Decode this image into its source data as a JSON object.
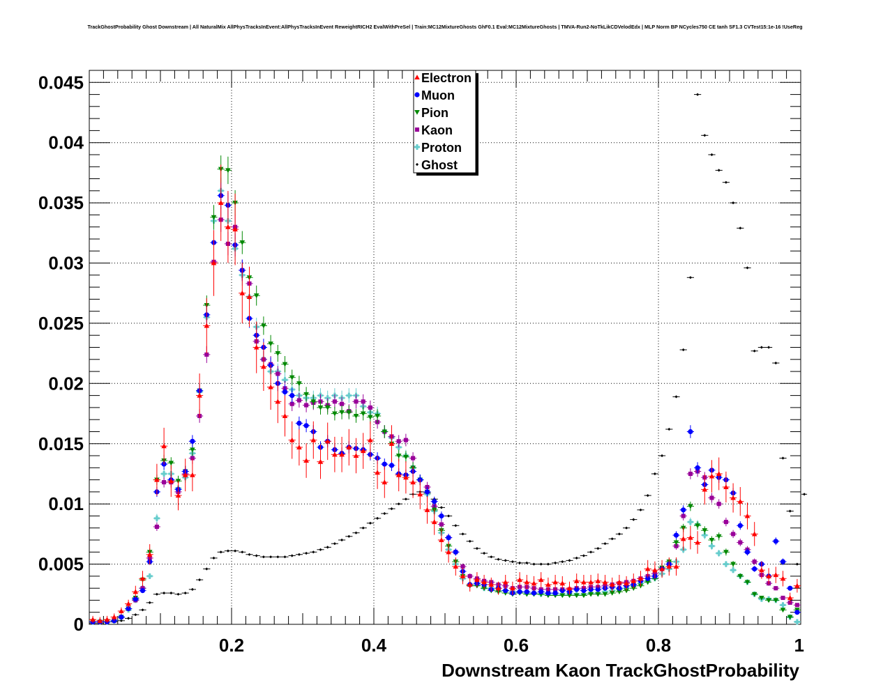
{
  "page": {
    "title": "TrackGhostProbability Ghost Downstream | All NaturalMix AllPhysTracksInEvent:AllPhysTracksInEvent ReweightRICH2 EvalWithPreSel | Train:MC12MixtureGhosts GhF0.1 Eval:MC12MixtureGhosts | TMVA-Run2-NoTkLikCDVelodEdx | MLP Norm BP NCycles750 CE tanh SF1.3 CVTest15:1e-16 !UseReg"
  },
  "chart_data": {
    "type": "scatter",
    "title": "TrackGhostProbability Ghost Downstream | All NaturalMix AllPhysTracksInEvent:AllPhysTracksInEvent ReweightRICH2 EvalWithPreSel | Train:MC12MixtureGhosts GhF0.1 Eval:MC12MixtureGhosts | TMVA-Run2-NoTkLikCDVelodEdx | MLP Norm BP NCycles750 CE tanh SF1.3 CVTest15:1e-16 !UseReg",
    "xlabel": "Downstream Kaon TrackGhostProbability",
    "ylabel": "",
    "xlim": [
      0,
      1
    ],
    "ylim": [
      0,
      0.046
    ],
    "grid": true,
    "legend_position": "top-center",
    "x_ticks": [
      0.2,
      0.4,
      0.6,
      0.8,
      1
    ],
    "x_tick_labels": [
      "0.2",
      "0.4",
      "0.6",
      "0.8",
      "1"
    ],
    "y_ticks": [
      0,
      0.005,
      0.01,
      0.015,
      0.02,
      0.025,
      0.03,
      0.035,
      0.04,
      0.045
    ],
    "y_tick_labels": [
      "0",
      "0.005",
      "0.01",
      "0.015",
      "0.02",
      "0.025",
      "0.03",
      "0.035",
      "0.04",
      "0.045"
    ],
    "x": [
      0.005,
      0.015,
      0.025,
      0.035,
      0.045,
      0.055,
      0.065,
      0.075,
      0.085,
      0.095,
      0.105,
      0.115,
      0.125,
      0.135,
      0.145,
      0.155,
      0.165,
      0.175,
      0.185,
      0.195,
      0.205,
      0.215,
      0.225,
      0.235,
      0.245,
      0.255,
      0.265,
      0.275,
      0.285,
      0.295,
      0.305,
      0.315,
      0.325,
      0.335,
      0.345,
      0.355,
      0.365,
      0.375,
      0.385,
      0.395,
      0.405,
      0.415,
      0.425,
      0.435,
      0.445,
      0.455,
      0.465,
      0.475,
      0.485,
      0.495,
      0.505,
      0.515,
      0.525,
      0.535,
      0.545,
      0.555,
      0.565,
      0.575,
      0.585,
      0.595,
      0.605,
      0.615,
      0.625,
      0.635,
      0.645,
      0.655,
      0.665,
      0.675,
      0.685,
      0.695,
      0.705,
      0.715,
      0.725,
      0.735,
      0.745,
      0.755,
      0.765,
      0.775,
      0.785,
      0.795,
      0.805,
      0.815,
      0.825,
      0.835,
      0.845,
      0.855,
      0.865,
      0.875,
      0.885,
      0.895,
      0.905,
      0.915,
      0.925,
      0.935,
      0.945,
      0.955,
      0.965,
      0.975,
      0.985,
      0.995
    ],
    "series": [
      {
        "name": "Electron",
        "color": "#ff0000",
        "marker": "triangle-up",
        "values": [
          0.0004,
          0.0003,
          0.0004,
          0.0006,
          0.0011,
          0.0017,
          0.0027,
          0.0038,
          0.0058,
          0.012,
          0.0148,
          0.0119,
          0.0107,
          0.0124,
          0.0124,
          0.019,
          0.0248,
          0.03,
          0.035,
          0.033,
          0.0328,
          0.0275,
          0.0272,
          0.023,
          0.0214,
          0.0197,
          0.0185,
          0.0173,
          0.0153,
          0.0147,
          0.0136,
          0.0153,
          0.0135,
          0.0152,
          0.0141,
          0.0141,
          0.0147,
          0.014,
          0.0144,
          0.0153,
          0.0126,
          0.0118,
          0.015,
          0.0124,
          0.0122,
          0.0118,
          0.0108,
          0.0095,
          0.0085,
          0.007,
          0.006,
          0.0048,
          0.004,
          0.0033,
          0.0037,
          0.0035,
          0.0033,
          0.003,
          0.0035,
          0.003,
          0.0037,
          0.0035,
          0.0034,
          0.0037,
          0.0033,
          0.0035,
          0.0034,
          0.003,
          0.0036,
          0.0035,
          0.0035,
          0.0036,
          0.0035,
          0.0033,
          0.0035,
          0.0034,
          0.0036,
          0.0038,
          0.0046,
          0.0045,
          0.0046,
          0.0048,
          0.0048,
          0.0071,
          0.0072,
          0.0068,
          0.0112,
          0.0123,
          0.0125,
          0.0114,
          0.0105,
          0.0102,
          0.009,
          0.0075,
          0.0045,
          0.004,
          0.0041,
          0.0038,
          0.0022,
          0.0032
        ]
      },
      {
        "name": "Muon",
        "color": "#0000ff",
        "marker": "circle",
        "values": [
          0.0002,
          0.0002,
          0.0002,
          0.0003,
          0.0006,
          0.0013,
          0.0021,
          0.0028,
          0.0052,
          0.011,
          0.0133,
          0.012,
          0.0112,
          0.0127,
          0.0152,
          0.0194,
          0.0257,
          0.0317,
          0.0356,
          0.0348,
          0.0315,
          0.0294,
          0.0254,
          0.024,
          0.023,
          0.0215,
          0.02,
          0.0193,
          0.019,
          0.0167,
          0.0165,
          0.016,
          0.0147,
          0.0152,
          0.0145,
          0.0142,
          0.0147,
          0.0146,
          0.0145,
          0.0141,
          0.0138,
          0.0133,
          0.0132,
          0.0125,
          0.0124,
          0.0127,
          0.012,
          0.011,
          0.0102,
          0.009,
          0.0072,
          0.006,
          0.0044,
          0.0033,
          0.0034,
          0.0033,
          0.0029,
          0.003,
          0.0028,
          0.0026,
          0.0027,
          0.0027,
          0.0026,
          0.0027,
          0.0026,
          0.0026,
          0.0028,
          0.0027,
          0.0029,
          0.0028,
          0.0029,
          0.0029,
          0.003,
          0.0031,
          0.003,
          0.0032,
          0.0033,
          0.0036,
          0.0038,
          0.004,
          0.0046,
          0.005,
          0.0074,
          0.0095,
          0.016,
          0.013,
          0.0116,
          0.0128,
          0.0122,
          0.012,
          0.0109,
          0.0082,
          0.006,
          0.0046,
          0.005,
          0.004,
          0.0069,
          0.0052,
          0.003,
          0.001
        ]
      },
      {
        "name": "Pion",
        "color": "#008800",
        "marker": "triangle-down",
        "values": [
          0.0002,
          0.0002,
          0.0002,
          0.0003,
          0.0006,
          0.0013,
          0.0022,
          0.0037,
          0.006,
          0.012,
          0.0136,
          0.0134,
          0.0119,
          0.0127,
          0.0145,
          0.0194,
          0.0265,
          0.0338,
          0.0378,
          0.0377,
          0.035,
          0.0317,
          0.0288,
          0.0273,
          0.0248,
          0.0233,
          0.0225,
          0.0216,
          0.0205,
          0.02,
          0.0191,
          0.0185,
          0.018,
          0.018,
          0.0175,
          0.0176,
          0.0176,
          0.0173,
          0.0175,
          0.0172,
          0.0173,
          0.016,
          0.015,
          0.014,
          0.0139,
          0.013,
          0.012,
          0.011,
          0.0095,
          0.0078,
          0.0065,
          0.0052,
          0.004,
          0.0032,
          0.0032,
          0.003,
          0.0028,
          0.0027,
          0.0026,
          0.0025,
          0.0026,
          0.0025,
          0.0025,
          0.0025,
          0.0024,
          0.0024,
          0.0024,
          0.0024,
          0.0024,
          0.0024,
          0.0025,
          0.0025,
          0.0025,
          0.0026,
          0.0027,
          0.0028,
          0.003,
          0.0032,
          0.0035,
          0.0038,
          0.0047,
          0.0052,
          0.0068,
          0.008,
          0.0098,
          0.0082,
          0.0078,
          0.007,
          0.0073,
          0.006,
          0.005,
          0.004,
          0.0035,
          0.0025,
          0.0022,
          0.002,
          0.002,
          0.0012,
          0.0006,
          0.0012
        ]
      },
      {
        "name": "Kaon",
        "color": "#990099",
        "marker": "square",
        "values": [
          0.0002,
          0.0002,
          0.0002,
          0.0003,
          0.0006,
          0.0013,
          0.002,
          0.003,
          0.0055,
          0.0081,
          0.0118,
          0.0118,
          0.011,
          0.0125,
          0.0138,
          0.0173,
          0.0224,
          0.0301,
          0.0336,
          0.0316,
          0.033,
          0.0294,
          0.0283,
          0.0235,
          0.022,
          0.0216,
          0.0208,
          0.0196,
          0.0183,
          0.0186,
          0.0182,
          0.0184,
          0.0185,
          0.0182,
          0.0185,
          0.0183,
          0.0177,
          0.0185,
          0.0185,
          0.018,
          0.0168,
          0.016,
          0.0156,
          0.0152,
          0.0153,
          0.0138,
          0.012,
          0.0114,
          0.0098,
          0.0083,
          0.0072,
          0.006,
          0.0048,
          0.004,
          0.0038,
          0.0036,
          0.0035,
          0.0033,
          0.0032,
          0.003,
          0.0031,
          0.0031,
          0.003,
          0.0029,
          0.0029,
          0.0029,
          0.0029,
          0.0029,
          0.003,
          0.003,
          0.0031,
          0.0031,
          0.0032,
          0.0033,
          0.0034,
          0.0035,
          0.0036,
          0.0038,
          0.004,
          0.0042,
          0.0046,
          0.005,
          0.0065,
          0.009,
          0.0125,
          0.0127,
          0.0122,
          0.0105,
          0.01,
          0.0085,
          0.0075,
          0.0068,
          0.0062,
          0.0052,
          0.0041,
          0.0034,
          0.003,
          0.0022,
          0.0018,
          0.0016
        ]
      },
      {
        "name": "Proton",
        "color": "#66cccc",
        "marker": "cross",
        "values": [
          0.0002,
          0.0002,
          0.0002,
          0.0003,
          0.0006,
          0.0012,
          0.002,
          0.003,
          0.004,
          0.0088,
          0.0125,
          0.0125,
          0.0113,
          0.0122,
          0.0142,
          0.0193,
          0.0255,
          0.0335,
          0.036,
          0.0335,
          0.0312,
          0.029,
          0.0272,
          0.0247,
          0.022,
          0.021,
          0.021,
          0.0203,
          0.0195,
          0.019,
          0.0188,
          0.0188,
          0.019,
          0.0188,
          0.019,
          0.0188,
          0.019,
          0.019,
          0.0181,
          0.0176,
          0.0175,
          0.016,
          0.0155,
          0.0147,
          0.014,
          0.013,
          0.012,
          0.0108,
          0.0094,
          0.0076,
          0.0062,
          0.005,
          0.0038,
          0.0033,
          0.0033,
          0.003,
          0.003,
          0.0028,
          0.0028,
          0.0027,
          0.0027,
          0.0026,
          0.0026,
          0.0025,
          0.0025,
          0.0025,
          0.0025,
          0.0025,
          0.0025,
          0.0025,
          0.0026,
          0.0026,
          0.0027,
          0.0028,
          0.0029,
          0.003,
          0.0032,
          0.0034,
          0.0036,
          0.0038,
          0.0042,
          0.0046,
          0.0052,
          0.0062,
          0.0085,
          0.0083,
          0.0074,
          0.0065,
          0.0059,
          0.005,
          0.0045,
          0.004,
          0.0035,
          0.0025,
          0.0021,
          0.0021,
          0.002,
          0.0016,
          0.0006,
          0.0002
        ]
      },
      {
        "name": "Ghost",
        "color": "#000000",
        "marker": "diamond",
        "values": [
          0.0001,
          0.0001,
          0.0002,
          0.0002,
          0.0003,
          0.0005,
          0.0008,
          0.0012,
          0.0018,
          0.0025,
          0.0026,
          0.0026,
          0.0025,
          0.0026,
          0.0029,
          0.0037,
          0.0046,
          0.0055,
          0.006,
          0.0061,
          0.0061,
          0.006,
          0.0058,
          0.0057,
          0.0056,
          0.0056,
          0.0056,
          0.0056,
          0.0057,
          0.0058,
          0.0059,
          0.006,
          0.0062,
          0.0064,
          0.0067,
          0.007,
          0.0073,
          0.0076,
          0.008,
          0.0084,
          0.0088,
          0.0092,
          0.0096,
          0.01,
          0.0104,
          0.0108,
          0.011,
          0.0109,
          0.0104,
          0.0097,
          0.009,
          0.0082,
          0.0075,
          0.0069,
          0.0063,
          0.0059,
          0.0056,
          0.0054,
          0.0053,
          0.0052,
          0.0051,
          0.0051,
          0.005,
          0.005,
          0.005,
          0.0051,
          0.0052,
          0.0053,
          0.0055,
          0.0057,
          0.006,
          0.0063,
          0.0067,
          0.0071,
          0.0075,
          0.008,
          0.0087,
          0.0095,
          0.0107,
          0.0125,
          0.014,
          0.0162,
          0.0189,
          0.0228,
          0.0288,
          0.044,
          0.0406,
          0.039,
          0.0377,
          0.0367,
          0.035,
          0.0329,
          0.0296,
          0.0227,
          0.023,
          0.023,
          0.0217,
          0.0138,
          0.0094,
          0.005
        ]
      }
    ],
    "tail_point": {
      "series": "Ghost",
      "x": 1.005,
      "value": 0.0108
    }
  }
}
